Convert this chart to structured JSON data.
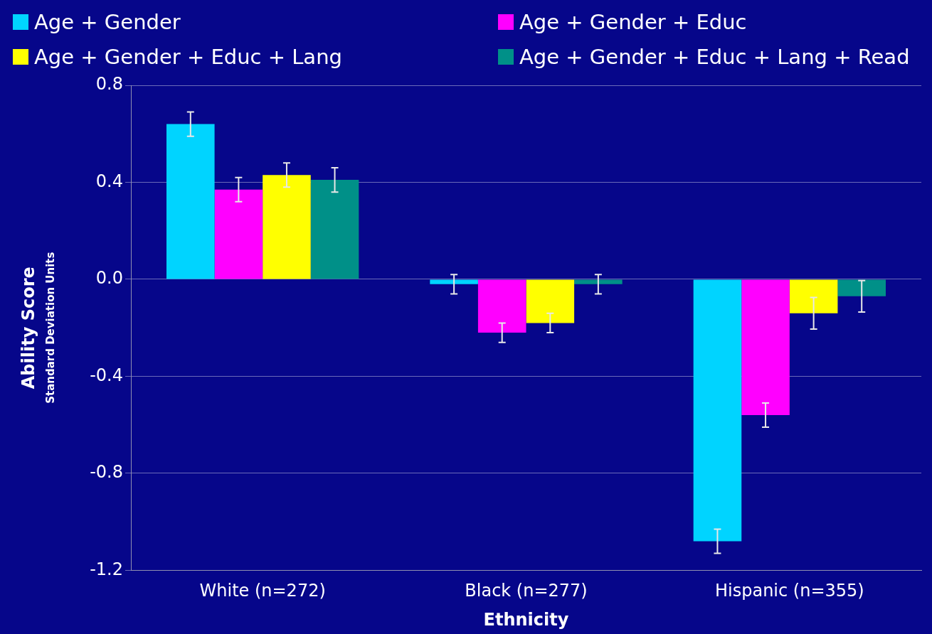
{
  "chart_data": {
    "type": "bar",
    "xlabel": "Ethnicity",
    "ylabel": "Ability Score\nStandard Deviation Units",
    "categories": [
      "White (n=272)",
      "Black (n=277)",
      "Hispanic (n=355)"
    ],
    "series": [
      {
        "name": "Age + Gender",
        "color": "#00d4ff",
        "values": [
          0.64,
          -0.02,
          -1.08
        ],
        "errors": [
          0.05,
          0.04,
          0.05
        ]
      },
      {
        "name": "Age + Gender + Educ",
        "color": "#ff00ff",
        "values": [
          0.37,
          -0.22,
          -0.56
        ],
        "errors": [
          0.05,
          0.04,
          0.05
        ]
      },
      {
        "name": "Age + Gender + Educ + Lang",
        "color": "#ffff00",
        "values": [
          0.43,
          -0.18,
          -0.14
        ],
        "errors": [
          0.05,
          0.04,
          0.065
        ]
      },
      {
        "name": "Age + Gender + Educ + Lang + Read",
        "color": "#009088",
        "values": [
          0.41,
          -0.02,
          -0.07
        ],
        "errors": [
          0.05,
          0.04,
          0.065
        ]
      }
    ],
    "ylim": [
      -1.2,
      0.8
    ],
    "yticks": [
      {
        "value": -1.2,
        "label": "-1.2"
      },
      {
        "value": -0.8,
        "label": "-0.8"
      },
      {
        "value": -0.4,
        "label": "-0.4"
      },
      {
        "value": 0,
        "label": "0.0"
      },
      {
        "value": 0.4,
        "label": "0.4"
      },
      {
        "value": 0.8,
        "label": "0.8"
      }
    ],
    "grid": "y",
    "legend": "top"
  }
}
